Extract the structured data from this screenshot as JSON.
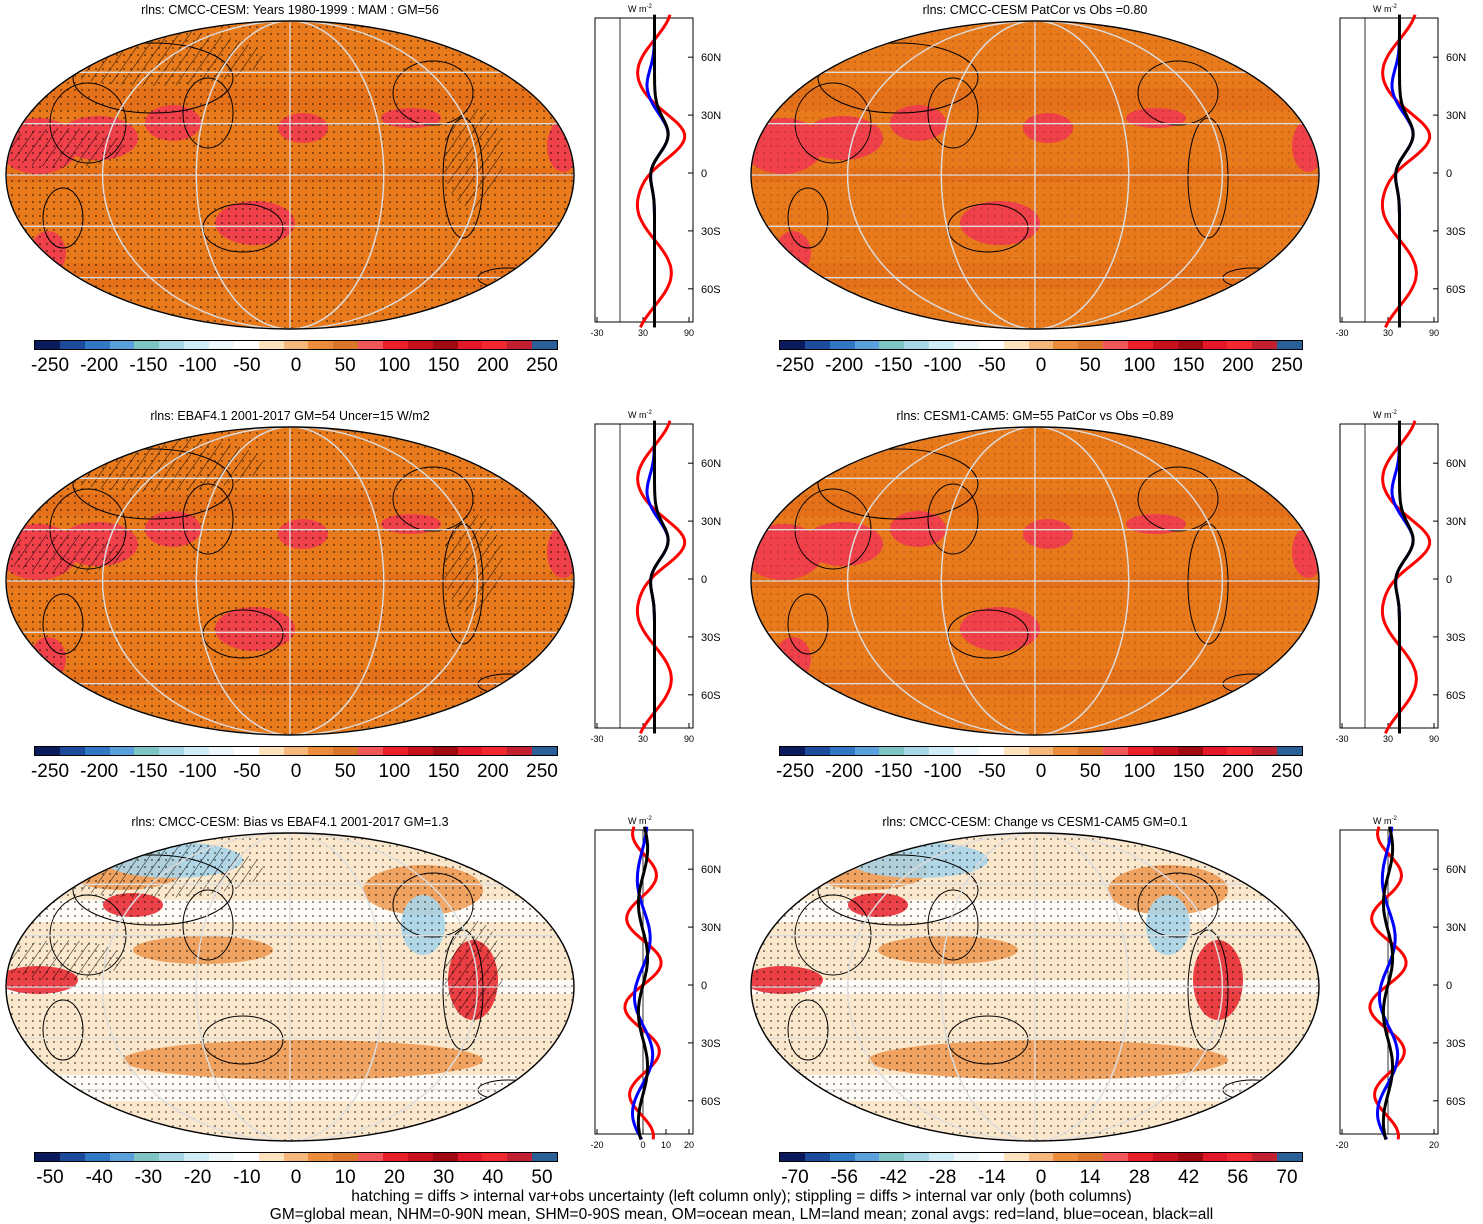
{
  "colors": {
    "scale": [
      "#0a1a5c",
      "#1c4b9b",
      "#2f78c4",
      "#5aa0dc",
      "#7fc4c4",
      "#a8d8e8",
      "#d0ecf4",
      "#eef8fb",
      "#ffffff",
      "#fde2bd",
      "#f6b77a",
      "#ec8c3c",
      "#d9762a",
      "#f0565a",
      "#e8202a",
      "#c8101e",
      "#a00812",
      "#e01828",
      "#f02830",
      "#c02030",
      "#2a5f98"
    ],
    "land": "#e06a1a",
    "ocean": "#e87a1c",
    "hot": "#f0404a",
    "cool": "#a8d4e8",
    "light": "#fbe7cb",
    "zonal_land": "#ff0000",
    "zonal_ocean": "#0000ff",
    "zonal_all": "#000000"
  },
  "panels": [
    {
      "title": "rlns: CMCC-CESM: Years 1980-1999 : MAM : GM=56",
      "cbar_labels": [
        "-250",
        "-200",
        "-150",
        "-100",
        "-50",
        "0",
        "50",
        "100",
        "150",
        "200",
        "250"
      ],
      "zonal_xticks": [
        "-30",
        "30",
        "90"
      ],
      "zonal_lat": [
        "60N",
        "30N",
        "0",
        "30S",
        "60S"
      ],
      "unit": "W m-2"
    },
    {
      "title": "rlns: CMCC-CESM PatCor vs Obs =0.80",
      "cbar_labels": [
        "-250",
        "-200",
        "-150",
        "-100",
        "-50",
        "0",
        "50",
        "100",
        "150",
        "200",
        "250"
      ],
      "zonal_xticks": [
        "-30",
        "30",
        "90"
      ],
      "zonal_lat": [
        "60N",
        "30N",
        "0",
        "30S",
        "60S"
      ],
      "unit": "W m-2"
    },
    {
      "title": "rlns: EBAF4.1 2001-2017 GM=54 Uncer=15 W/m2",
      "cbar_labels": [
        "-250",
        "-200",
        "-150",
        "-100",
        "-50",
        "0",
        "50",
        "100",
        "150",
        "200",
        "250"
      ],
      "zonal_xticks": [
        "-30",
        "30",
        "90"
      ],
      "zonal_lat": [
        "60N",
        "30N",
        "0",
        "30S",
        "60S"
      ],
      "unit": "W m-2"
    },
    {
      "title": "rlns: CESM1-CAM5: GM=55 PatCor vs Obs =0.89",
      "cbar_labels": [
        "-250",
        "-200",
        "-150",
        "-100",
        "-50",
        "0",
        "50",
        "100",
        "150",
        "200",
        "250"
      ],
      "zonal_xticks": [
        "-30",
        "30",
        "90"
      ],
      "zonal_lat": [
        "60N",
        "30N",
        "0",
        "30S",
        "60S"
      ],
      "unit": "W m-2"
    },
    {
      "title": "rlns: CMCC-CESM: Bias vs EBAF4.1 2001-2017 GM=1.3",
      "cbar_labels": [
        "-50",
        "-40",
        "-30",
        "-20",
        "-10",
        "0",
        "10",
        "20",
        "30",
        "40",
        "50"
      ],
      "zonal_xticks": [
        "-20",
        "0",
        "10",
        "20"
      ],
      "zonal_lat": [
        "60N",
        "30N",
        "0",
        "30S",
        "60S"
      ],
      "unit": "W m-2"
    },
    {
      "title": "rlns: CMCC-CESM: Change vs CESM1-CAM5 GM=0.1",
      "cbar_labels": [
        "-70",
        "-56",
        "-42",
        "-28",
        "-14",
        "0",
        "14",
        "28",
        "42",
        "56",
        "70"
      ],
      "zonal_xticks": [
        "-20",
        "20"
      ],
      "zonal_lat": [
        "60N",
        "30N",
        "0",
        "30S",
        "60S"
      ],
      "unit": "W m-2"
    }
  ],
  "footer": {
    "line1": "hatching = diffs > internal var+obs uncertainty (left column only); stippling = diffs > internal var only (both columns)",
    "line2": "GM=global mean, NHM=0-90N mean, SHM=0-90S mean, OM=ocean mean, LM=land mean; zonal avgs: red=land, blue=ocean, black=all"
  }
}
